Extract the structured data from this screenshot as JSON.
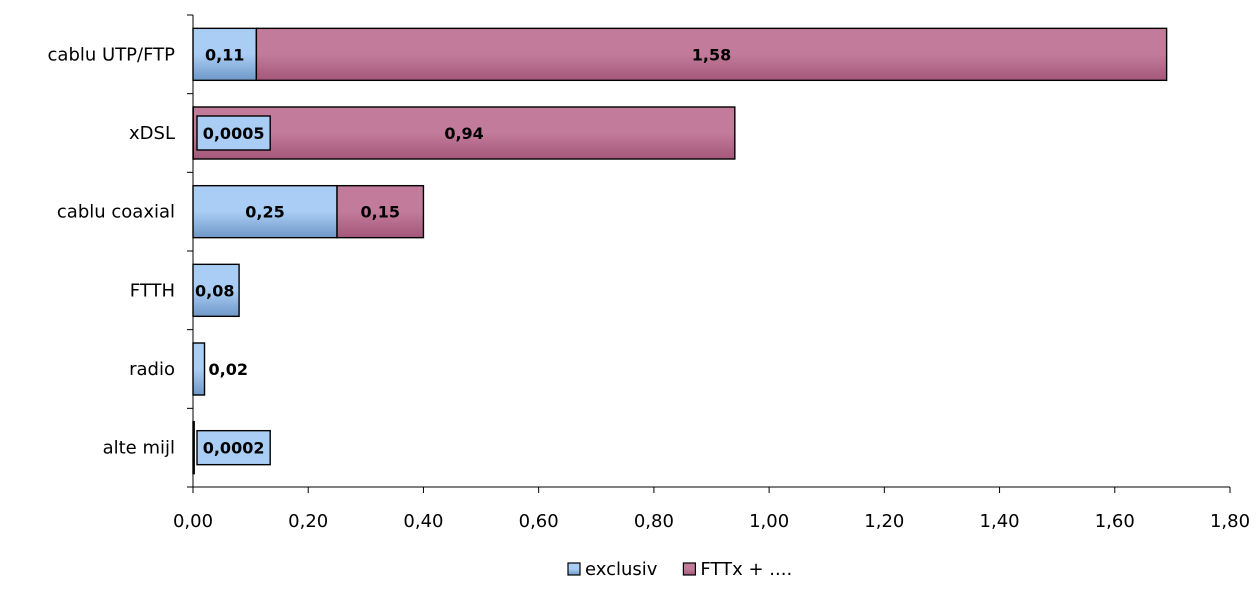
{
  "colors": {
    "exclusiv_fill": "#6f98c8",
    "exclusiv_light": "#a9cdf4",
    "fttx_fill": "#a4577a",
    "fttx_light": "#c27b9b",
    "outline": "#000000"
  },
  "chart_data": {
    "type": "bar",
    "orientation": "horizontal",
    "stacked": true,
    "categories": [
      "cablu UTP/FTP",
      "xDSL",
      "cablu coaxial",
      "FTTH",
      "radio",
      "alte mijl"
    ],
    "series": [
      {
        "name": "exclusiv",
        "values": [
          0.11,
          0.0005,
          0.25,
          0.08,
          0.02,
          0.0002
        ],
        "labels": [
          "0,11",
          "0,0005",
          "0,25",
          "0,08",
          "0,02",
          "0,0002"
        ]
      },
      {
        "name": "FTTx + ....",
        "values": [
          1.58,
          0.94,
          0.15,
          0,
          0,
          0
        ],
        "labels": [
          "1,58",
          "0,94",
          "0,15",
          "",
          "",
          ""
        ]
      }
    ],
    "xlim": [
      0,
      1.8
    ],
    "x_ticks": [
      "0,00",
      "0,20",
      "0,40",
      "0,60",
      "0,80",
      "1,00",
      "1,20",
      "1,40",
      "1,60",
      "1,80"
    ],
    "legend": {
      "position": "bottom",
      "entries": [
        "exclusiv",
        "FTTx + ...."
      ]
    },
    "grid": false
  }
}
